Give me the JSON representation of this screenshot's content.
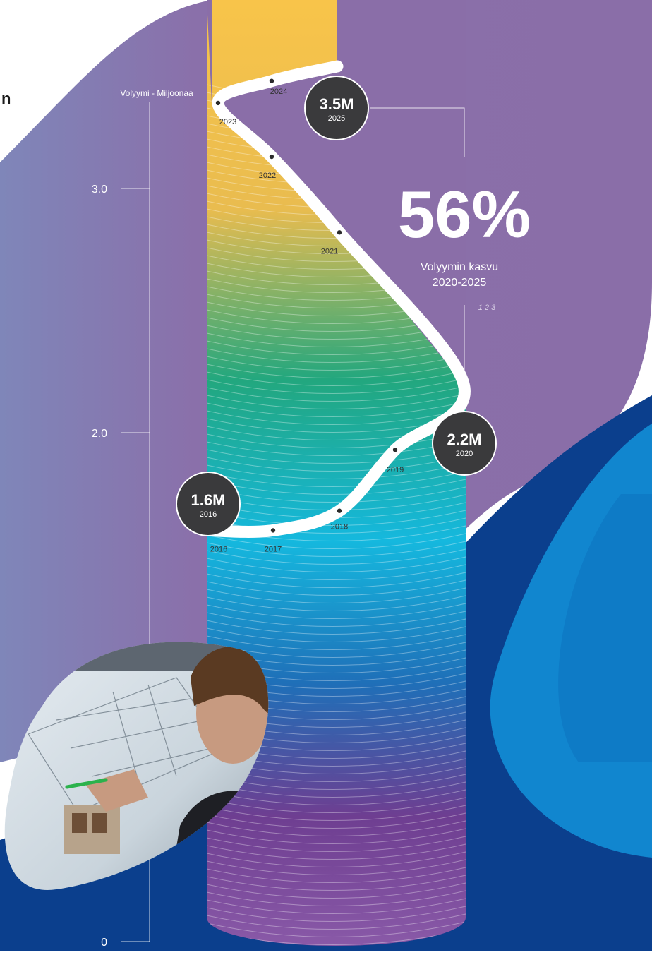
{
  "corner_text": "n",
  "chart_data": {
    "type": "line",
    "ylabel": "Volyymi - Miljoonaa",
    "yticks": [
      {
        "value": 0,
        "label": "0"
      },
      {
        "value": 2.0,
        "label": "2.0"
      },
      {
        "value": 3.0,
        "label": "3.0"
      }
    ],
    "series": [
      {
        "points": [
          {
            "year": "2016",
            "value": 1.6
          },
          {
            "year": "2017",
            "value": 1.6
          },
          {
            "year": "2018",
            "value": 1.68
          },
          {
            "year": "2019",
            "value": 1.93
          },
          {
            "year": "2020",
            "value": 2.2
          },
          {
            "year": "2021",
            "value": 2.82
          },
          {
            "year": "2022",
            "value": 3.13
          },
          {
            "year": "2023",
            "value": 3.35
          },
          {
            "year": "2024",
            "value": 3.44
          },
          {
            "year": "2025",
            "value": 3.5
          }
        ]
      }
    ],
    "callouts": [
      {
        "id": "2016",
        "value": "1.6M",
        "year": "2016"
      },
      {
        "id": "2020",
        "value": "2.2M",
        "year": "2020"
      },
      {
        "id": "2025",
        "value": "3.5M",
        "year": "2025"
      }
    ],
    "stat": {
      "value": "56%",
      "label_line1": "Volyymin kasvu",
      "label_line2": "2020-2025",
      "footnote": "1 2 3"
    }
  },
  "colors": {
    "purple_blob": "#8b6ea8",
    "dark_blue": "#0a3f8f",
    "mid_blue": "#0d6fc0",
    "light_blue": "#1d95d6",
    "circle_dark": "#3a3a3c",
    "gradient_top": "#f6c04a",
    "gradient_mid": "#21a77f",
    "gradient_low": "#14b5e0",
    "gradient_bottom": "#6b3d8d"
  }
}
